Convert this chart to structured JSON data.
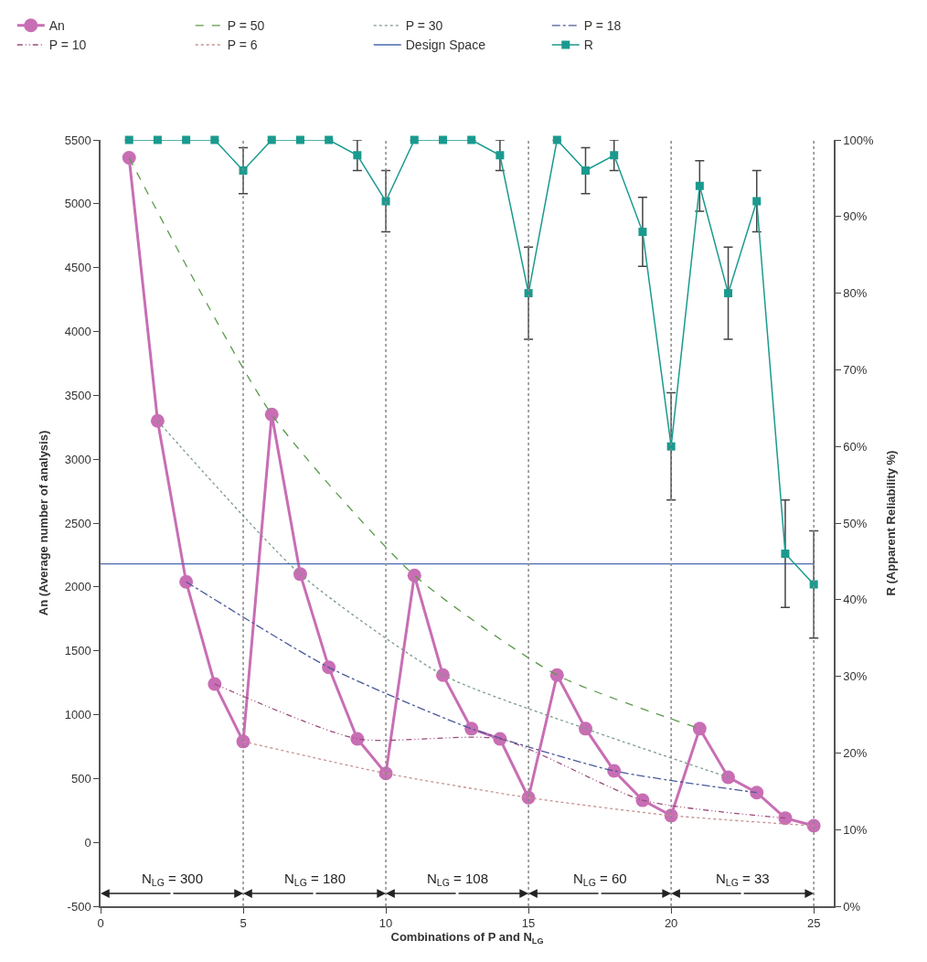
{
  "chart_data": {
    "type": "line",
    "xlabel": "Combinations of P and N$_{LG}$",
    "ylabel": "An (Average number of analysis)",
    "y2label": "R (Apparent Reliability %)",
    "x": [
      1,
      2,
      3,
      4,
      5,
      6,
      7,
      8,
      9,
      10,
      11,
      12,
      13,
      14,
      15,
      16,
      17,
      18,
      19,
      20,
      21,
      22,
      23,
      24,
      25
    ],
    "series": [
      {
        "name": "An",
        "color": "#c86eb4",
        "marker": "circle",
        "line_style": "solid",
        "values": [
          5360,
          3300,
          2040,
          1240,
          790,
          3350,
          2100,
          1370,
          810,
          540,
          2090,
          1310,
          890,
          810,
          350,
          1310,
          890,
          560,
          330,
          210,
          890,
          510,
          390,
          190,
          130
        ]
      },
      {
        "name": "P = 50",
        "color": "#5a9a4a",
        "marker": "none",
        "line_style": "dashed",
        "x": [
          1,
          6,
          11,
          16,
          21
        ],
        "values": [
          5360,
          3350,
          2090,
          1310,
          890
        ]
      },
      {
        "name": "P = 30",
        "color": "#7a9a8a",
        "marker": "none",
        "line_style": "dotted",
        "x": [
          2,
          7,
          12,
          17,
          22
        ],
        "values": [
          3300,
          2100,
          1310,
          890,
          510
        ]
      },
      {
        "name": "P = 18",
        "color": "#4a5a9a",
        "marker": "none",
        "line_style": "dashdot",
        "x": [
          3,
          8,
          13,
          18,
          23
        ],
        "values": [
          2040,
          1370,
          890,
          560,
          390
        ]
      },
      {
        "name": "P = 10",
        "color": "#9a4a7a",
        "marker": "none",
        "line_style": "dashdotdot",
        "x": [
          4,
          9,
          14,
          19,
          24
        ],
        "values": [
          1240,
          810,
          810,
          330,
          190
        ]
      },
      {
        "name": "P = 6",
        "color": "#c89090",
        "marker": "none",
        "line_style": "dotted",
        "x": [
          5,
          10,
          15,
          20,
          25
        ],
        "values": [
          790,
          540,
          350,
          210,
          130
        ]
      },
      {
        "name": "Design Space",
        "color": "#4a6ab0",
        "marker": "none",
        "line_style": "solid",
        "x": [
          0,
          25
        ],
        "values": [
          2180,
          2180
        ]
      },
      {
        "name": "R",
        "color": "#1a9a8e",
        "marker": "square",
        "line_style": "solid",
        "axis": "y2",
        "values": [
          100,
          100,
          100,
          100,
          96,
          100,
          100,
          100,
          98,
          92,
          100,
          100,
          100,
          98,
          80,
          100,
          96,
          98,
          88,
          60,
          94,
          80,
          92,
          46,
          42
        ],
        "errors": [
          null,
          null,
          null,
          null,
          3,
          null,
          null,
          null,
          2,
          4,
          null,
          null,
          null,
          2,
          6,
          null,
          3,
          2,
          4.5,
          7,
          3.3,
          6,
          4,
          7,
          7
        ]
      }
    ],
    "xlim": [
      0,
      25.7
    ],
    "xticks": [
      0,
      5,
      10,
      15,
      20,
      25
    ],
    "ylim": [
      -500,
      5500
    ],
    "yticks": [
      -500,
      0,
      500,
      1000,
      1500,
      2000,
      2500,
      3000,
      3500,
      4000,
      4500,
      5000,
      5500
    ],
    "y2lim": [
      0,
      100
    ],
    "y2ticks": [
      {
        "value": 0,
        "label": "0%"
      },
      {
        "value": 10,
        "label": "10%"
      },
      {
        "value": 20,
        "label": "20%"
      },
      {
        "value": 30,
        "label": "30%"
      },
      {
        "value": 40,
        "label": "40%"
      },
      {
        "value": 50,
        "label": "50%"
      },
      {
        "value": 60,
        "label": "60%"
      },
      {
        "value": 70,
        "label": "70%"
      },
      {
        "value": 80,
        "label": "80%"
      },
      {
        "value": 90,
        "label": "90%"
      },
      {
        "value": 100,
        "label": "100%"
      }
    ],
    "ref_lines": [
      {
        "axis": "x",
        "value": 5,
        "color": "#888888",
        "line_style": "dotted"
      },
      {
        "axis": "x",
        "value": 10,
        "color": "#888888",
        "line_style": "dotted"
      },
      {
        "axis": "x",
        "value": 15,
        "color": "#888888",
        "line_style": "dotted"
      },
      {
        "axis": "x",
        "value": 20,
        "color": "#888888",
        "line_style": "dotted"
      },
      {
        "axis": "x",
        "value": 25,
        "color": "#888888",
        "line_style": "dotted"
      }
    ],
    "annotations": [
      {
        "text": "N$_{LG}$ = 300",
        "x": 5,
        "y": -400
      },
      {
        "text": "N$_{LG}$ = 180",
        "x": 10,
        "y": -400
      },
      {
        "text": "N$_{LG}$ = 108",
        "x": 15,
        "y": -400
      },
      {
        "text": "N$_{LG}$ = 60",
        "x": 20,
        "y": -400
      },
      {
        "text": "N$_{LG}$ = 33",
        "x": 25,
        "y": -400
      }
    ],
    "legend": "top"
  }
}
